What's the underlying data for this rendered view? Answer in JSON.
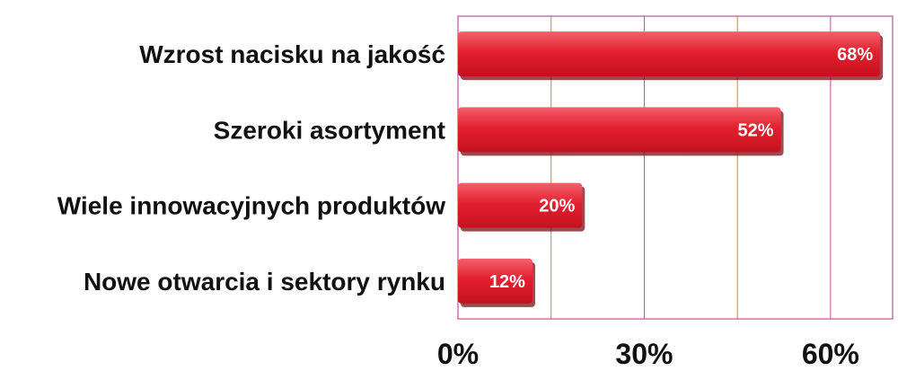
{
  "chart_data": {
    "type": "bar",
    "orientation": "horizontal",
    "categories": [
      "Wzrost nacisku na jakość",
      "Szeroki asortyment",
      "Wiele innowacyjnych produktów",
      "Nowe otwarcia i sektory rynku"
    ],
    "values": [
      68,
      52,
      20,
      12
    ],
    "value_labels": [
      "68%",
      "52%",
      "20%",
      "12%"
    ],
    "xlim": [
      0,
      70
    ],
    "x_ticks": [
      0,
      30,
      60
    ],
    "x_tick_labels": [
      "0%",
      "30%",
      "60%"
    ],
    "grid": true,
    "colors": {
      "bar": "#e01b2c",
      "bar_highlight": "#f25a66",
      "bar_shadow": "#7a0d16",
      "frame": "#c0509a",
      "gridline": "#d6842e",
      "text": "#111111"
    }
  }
}
